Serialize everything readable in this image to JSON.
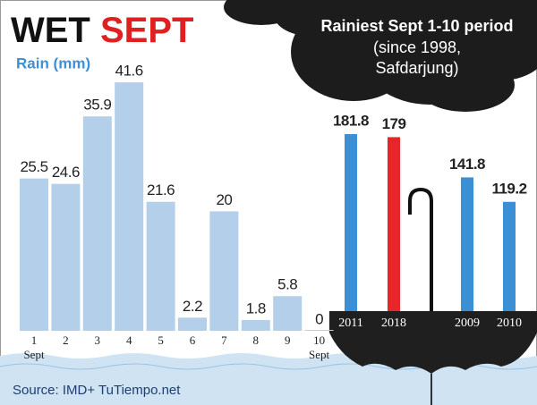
{
  "header": {
    "title_1": "WET",
    "title_2": "SEPT"
  },
  "source": "Source: IMD+ TuTiempo.net",
  "chart_data": [
    {
      "type": "bar",
      "y_label": "Rain (mm)",
      "categories": [
        "1",
        "2",
        "3",
        "4",
        "5",
        "6",
        "7",
        "8",
        "9",
        "10"
      ],
      "category_sublabels": [
        "Sept",
        null,
        null,
        null,
        null,
        null,
        null,
        null,
        null,
        "Sept"
      ],
      "values": [
        25.5,
        24.6,
        35.9,
        41.6,
        21.6,
        2.2,
        20,
        1.8,
        5.8,
        0
      ],
      "color": "#b3cfea"
    },
    {
      "type": "bar",
      "title": "Rainiest Sept 1-10 period",
      "subtitle_lines": [
        "(since 1998,",
        "Safdarjung)"
      ],
      "categories": [
        "2011",
        "2018",
        "2009",
        "2010"
      ],
      "values": [
        181.8,
        179,
        141.8,
        119.2
      ],
      "colors": [
        "#3b8fd4",
        "#e8262a",
        "#3b8fd4",
        "#3b8fd4"
      ]
    }
  ]
}
